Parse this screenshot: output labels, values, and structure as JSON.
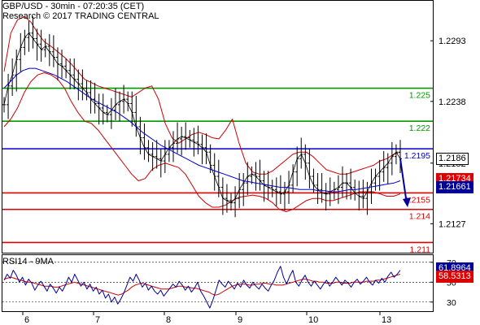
{
  "chart_data": [
    {
      "type": "line",
      "title": "GBP/USD - 30min - 07:20:35 (CET)",
      "subtitle": "Research © 2017 TRADING CENTRAL",
      "x_tick_labels": [
        "6",
        "7",
        "8",
        "9",
        "10",
        "13"
      ],
      "y_tick_labels": [
        "1.2293",
        "1.2238",
        "1.2182",
        "1.2127"
      ],
      "ylim": [
        1.21,
        1.233
      ],
      "grid": false,
      "series": [
        {
          "values": [
            1.2235,
            1.2252,
            1.2262,
            1.2276,
            1.2287,
            1.2296,
            1.23,
            1.2295,
            1.229,
            1.2285,
            1.2288,
            1.2283,
            1.2278,
            1.2272,
            1.227,
            1.2266,
            1.2262,
            1.2258,
            1.2254,
            1.225,
            1.2246,
            1.224,
            1.2236,
            1.2232,
            1.2228,
            1.2226,
            1.223,
            1.2235,
            1.2238,
            1.224,
            1.2236,
            1.2228,
            1.2215,
            1.2205,
            1.2196,
            1.219,
            1.2188,
            1.2186,
            1.2184,
            1.219,
            1.2196,
            1.22,
            1.2204,
            1.2206,
            1.2205,
            1.2203,
            1.2201,
            1.2199,
            1.2196,
            1.2192,
            1.218,
            1.217,
            1.216,
            1.215,
            1.2148,
            1.2146,
            1.215,
            1.2158,
            1.2164,
            1.217,
            1.2172,
            1.217,
            1.2166,
            1.2162,
            1.216,
            1.2158,
            1.2156,
            1.2154,
            1.2156,
            1.2162,
            1.2174,
            1.2186,
            1.219,
            1.2182,
            1.217,
            1.2162,
            1.2158,
            1.2155,
            1.2154,
            1.2156,
            1.2158,
            1.216,
            1.2164,
            1.2164,
            1.216,
            1.2155,
            1.2152,
            1.215,
            1.2156,
            1.2164,
            1.217,
            1.2174,
            1.2178,
            1.2182,
            1.2188,
            1.2192,
            1.2186
          ]
        },
        {
          "values": [
            1.225,
            1.2256,
            1.2262,
            1.2266,
            1.2268,
            1.2268,
            1.2266,
            1.2264,
            1.2262,
            1.2259,
            1.2256,
            1.2252,
            1.2248,
            1.2244,
            1.224,
            1.2237,
            1.2234,
            1.2231,
            1.2228,
            1.2224,
            1.222,
            1.2215,
            1.221,
            1.2206,
            1.2202,
            1.2198,
            1.2195,
            1.2192,
            1.2189,
            1.2186,
            1.2183,
            1.218,
            1.2178,
            1.2176,
            1.2174,
            1.2172,
            1.217,
            1.2168,
            1.2166,
            1.2165,
            1.2164,
            1.2163,
            1.2162,
            1.2161,
            1.216,
            1.216,
            1.2159,
            1.2158,
            1.2158,
            1.2158,
            1.2157,
            1.2157,
            1.2156,
            1.2156,
            1.2157,
            1.2158,
            1.2158,
            1.2159,
            1.216,
            1.2161,
            1.2162,
            1.2163,
            1.2164,
            1.2166
          ]
        }
      ],
      "bollinger_upper": [
        1.2265,
        1.23,
        1.2312,
        1.2315,
        1.231,
        1.23,
        1.2292,
        1.2288,
        1.2283,
        1.2278,
        1.2272,
        1.2265,
        1.2258,
        1.2255,
        1.2252,
        1.225,
        1.2248,
        1.2246,
        1.2244,
        1.2242,
        1.2246,
        1.225,
        1.2252,
        1.224,
        1.2218,
        1.2205,
        1.22,
        1.2204,
        1.2208,
        1.221,
        1.2208,
        1.2205,
        1.2204,
        1.2212,
        1.2222,
        1.22,
        1.2182,
        1.2174,
        1.2172,
        1.2172,
        1.2175,
        1.218,
        1.2185,
        1.219,
        1.2192,
        1.2192,
        1.2188,
        1.2182,
        1.2176,
        1.2174,
        1.2172,
        1.2172,
        1.2174,
        1.2176,
        1.2178,
        1.218,
        1.2184,
        1.2186,
        1.219,
        1.2192
      ],
      "bollinger_lower": [
        1.2215,
        1.2222,
        1.2232,
        1.2246,
        1.2256,
        1.2262,
        1.2264,
        1.2262,
        1.2258,
        1.225,
        1.2238,
        1.2228,
        1.222,
        1.2218,
        1.2212,
        1.2204,
        1.2196,
        1.2188,
        1.218,
        1.2172,
        1.2166,
        1.2168,
        1.2176,
        1.218,
        1.2182,
        1.218,
        1.2178,
        1.2172,
        1.2162,
        1.2152,
        1.2146,
        1.2142,
        1.2142,
        1.2144,
        1.2148,
        1.2151,
        1.2152,
        1.2153,
        1.2152,
        1.215,
        1.2146,
        1.214,
        1.2138,
        1.214,
        1.2144,
        1.2148,
        1.215,
        1.215,
        1.2148,
        1.2148,
        1.215,
        1.2152,
        1.2154,
        1.2156,
        1.2156,
        1.2156,
        1.2154,
        1.2152,
        1.2152,
        1.2154
      ],
      "levels": [
        {
          "value": 1.225,
          "label": "1.225",
          "color": "#009900"
        },
        {
          "value": 1.222,
          "label": "1.222",
          "color": "#009900"
        },
        {
          "value": 1.2195,
          "label": "1.2195",
          "color": "#0000cc"
        },
        {
          "value": 1.2155,
          "label": "1.2155",
          "color": "#dd0000"
        },
        {
          "value": 1.214,
          "label": "1.214",
          "color": "#dd0000"
        },
        {
          "value": 1.211,
          "label": "1.211",
          "color": "#dd0000"
        }
      ],
      "price_boxes": [
        {
          "value": 1.2186,
          "label": "1.2186",
          "bg": "#ffffff",
          "fg": "#000000",
          "border": "#000000"
        },
        {
          "value": 1.21734,
          "label": "1.21734",
          "bg": "#dd0000",
          "fg": "#ffffff",
          "border": "#dd0000"
        },
        {
          "value": 1.21661,
          "label": "1.21661",
          "bg": "#000099",
          "fg": "#ffffff",
          "border": "#000099"
        }
      ],
      "colors": {
        "price": "#000000",
        "moving_average": "#0000cc",
        "bollinger": "#cc0000"
      }
    },
    {
      "type": "line",
      "title": "RSI14 - 9MA",
      "y_tick_labels": [
        "70",
        "50",
        "30"
      ],
      "ylim": [
        20,
        78
      ],
      "reference_lines": [
        70,
        50,
        30
      ],
      "series": [
        {
          "values": [
            52,
            58,
            54,
            62,
            57,
            50,
            55,
            47,
            53,
            49,
            42,
            47,
            51,
            46,
            41,
            48,
            44,
            39,
            45,
            41,
            47,
            55,
            50,
            58,
            52,
            46,
            50,
            43,
            48,
            41,
            45,
            38,
            42,
            34,
            38,
            30,
            35,
            28,
            33,
            39,
            47,
            55,
            51,
            58,
            52,
            45,
            49,
            42,
            46,
            41,
            38,
            42,
            36,
            40,
            44,
            48,
            45,
            51,
            47,
            42,
            46,
            40,
            44,
            50,
            41,
            36,
            30,
            24,
            32,
            42,
            52,
            48,
            45,
            51,
            47,
            43,
            49,
            45,
            52,
            47,
            44,
            50,
            46,
            43,
            48,
            44,
            41,
            47,
            52,
            60,
            66,
            55,
            48,
            56,
            62,
            50,
            46,
            52,
            57,
            50,
            46,
            51,
            47,
            43,
            48,
            52,
            46,
            50,
            55,
            51,
            47,
            52,
            49,
            45,
            50,
            53,
            48,
            51,
            55,
            50,
            47,
            52,
            49,
            54,
            50,
            56,
            60,
            55,
            58,
            62
          ]
        },
        {
          "values": [
            53,
            54,
            55,
            54,
            53,
            52,
            51,
            50,
            50,
            49,
            48,
            47,
            46,
            46,
            46,
            45,
            45,
            46,
            47,
            48,
            49,
            50,
            49,
            48,
            47,
            46,
            45,
            44,
            43,
            42,
            41,
            40,
            39,
            38,
            37,
            38,
            40,
            42,
            45,
            47,
            48,
            49,
            48,
            47,
            46,
            45,
            44,
            43,
            43,
            43,
            44,
            45,
            46,
            46,
            45,
            45,
            44,
            44,
            43,
            42,
            41,
            40,
            38,
            37,
            38,
            40,
            42,
            44,
            46,
            47,
            48,
            48,
            48,
            47,
            47,
            48,
            48,
            49,
            49,
            48,
            48,
            47,
            47,
            47,
            48,
            49,
            50,
            51,
            52,
            53,
            53,
            52,
            51,
            51,
            50,
            50,
            49,
            49,
            49,
            50,
            50,
            49,
            49,
            49,
            50,
            50,
            50,
            50,
            51,
            51,
            51,
            52,
            52,
            53,
            54,
            55,
            56,
            57,
            58
          ]
        }
      ],
      "price_boxes": [
        {
          "value": 61.8964,
          "label": "61.8964",
          "bg": "#000099",
          "fg": "#ffffff",
          "border": "#000099"
        },
        {
          "value": 58.5313,
          "label": "58.5313",
          "bg": "#dd0000",
          "fg": "#ffffff",
          "border": "#dd0000"
        }
      ],
      "colors": {
        "rsi": "#000099",
        "ma": "#cc0000"
      }
    }
  ]
}
